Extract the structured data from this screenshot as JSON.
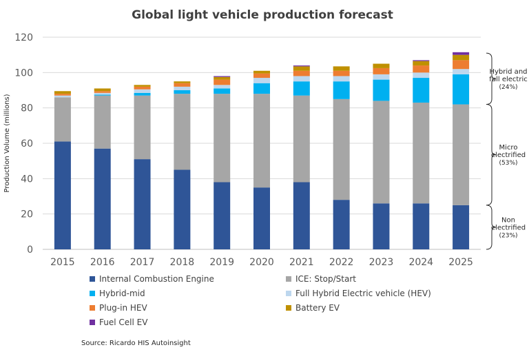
{
  "chart_data": {
    "type": "bar",
    "stacked": true,
    "title": "Global light vehicle production forecast",
    "ylabel": "Production Volume (millions)",
    "xlabel": "",
    "ylim": [
      0,
      120
    ],
    "yticks": [
      0,
      20,
      40,
      60,
      80,
      100,
      120
    ],
    "grid": true,
    "legend_position": "bottom",
    "categories": [
      "2015",
      "2016",
      "2017",
      "2018",
      "2019",
      "2020",
      "2021",
      "2022",
      "2023",
      "2024",
      "2025"
    ],
    "series": [
      {
        "name": "Internal Combustion Engine",
        "color": "#2f5597",
        "values": [
          61,
          57,
          51,
          45,
          38,
          35,
          38,
          28,
          26,
          26,
          25
        ]
      },
      {
        "name": "ICE: Stop/Start",
        "color": "#a6a6a6",
        "values": [
          25,
          30,
          36,
          43,
          50,
          53,
          49,
          57,
          58,
          57,
          57
        ]
      },
      {
        "name": "Hybrid-mid",
        "color": "#00b0f0",
        "values": [
          0,
          0.5,
          1.5,
          2,
          3,
          6,
          8,
          10,
          12,
          14,
          17
        ]
      },
      {
        "name": "Full Hybrid Electric vehicle (HEV)",
        "color": "#bdd7ee",
        "values": [
          1,
          1,
          2,
          2,
          2,
          3,
          3,
          3,
          3,
          3,
          3
        ]
      },
      {
        "name": "Plug-in HEV",
        "color": "#ed7d31",
        "values": [
          1,
          1,
          1.5,
          2,
          3,
          2.5,
          3,
          3,
          3.5,
          4,
          5
        ]
      },
      {
        "name": "Battery EV",
        "color": "#bf9000",
        "values": [
          1.5,
          1.5,
          1,
          1,
          1.5,
          1.5,
          2.5,
          2.5,
          2.5,
          2.5,
          3
        ]
      },
      {
        "name": "Fuel Cell EV",
        "color": "#7030a0",
        "values": [
          0,
          0,
          0,
          0,
          0.5,
          0,
          0.5,
          0,
          0,
          0.5,
          1.5
        ]
      }
    ],
    "annotations": [
      {
        "label": "Hybrid and full electric",
        "pct": "(24%)",
        "from": 82,
        "to": 111
      },
      {
        "label": "Micro electrified",
        "pct": "(53%)",
        "from": 25,
        "to": 82
      },
      {
        "label": "Non electrified",
        "pct": "(23%)",
        "from": 0,
        "to": 25
      }
    ],
    "source": "Source: Ricardo HIS Autoinsight"
  }
}
